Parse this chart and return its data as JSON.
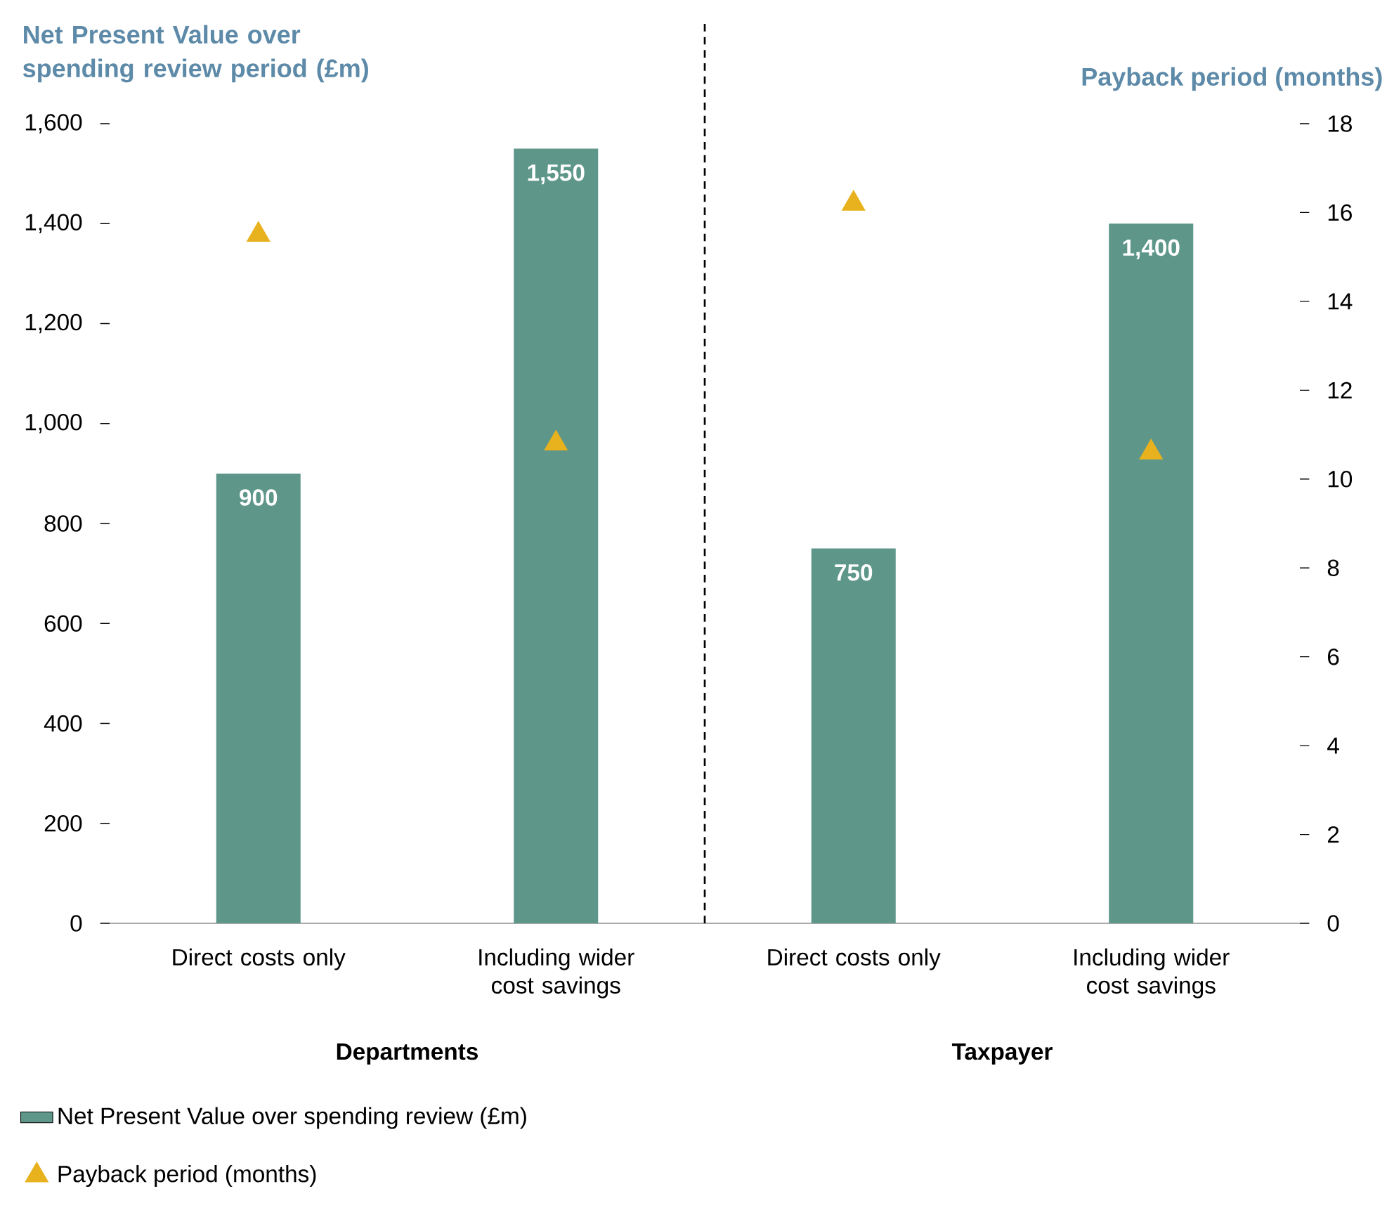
{
  "chart_data": {
    "type": "bar",
    "categories": [
      "Direct costs only",
      "Including wider cost savings",
      "Direct costs only",
      "Including wider cost savings"
    ],
    "ylabel": "Net Present Value over spending review period (£m)",
    "y2label": "Payback period (months)",
    "ylim": [
      0,
      1600
    ],
    "yticks": [
      0,
      200,
      400,
      600,
      800,
      {
        "value": 1000,
        "label": "1,000"
      },
      {
        "value": 1200,
        "label": "1,200"
      },
      {
        "value": 1400,
        "label": "1,400"
      },
      {
        "value": 1600,
        "label": "1,600"
      }
    ],
    "y2lim": [
      0,
      18
    ],
    "y2ticks": [
      0,
      2,
      4,
      6,
      8,
      10,
      12,
      14,
      16,
      18
    ],
    "series": [
      {
        "name": "Net Present Value over spending review (£m)",
        "color": "#5e978a",
        "values": [
          900,
          1550,
          750,
          1400
        ],
        "value_labels": [
          "900",
          "1,550",
          "750",
          "1,400"
        ]
      },
      {
        "name": "Payback period (months)",
        "type": "scatter",
        "axis": "y2",
        "marker": "triangle",
        "color": "#e8b11e",
        "values": [
          15.5,
          10.8,
          16.2,
          10.6
        ]
      }
    ],
    "annotations": [
      "Departments",
      "Taxpayer"
    ],
    "legend": "bottom",
    "grid": false
  }
}
